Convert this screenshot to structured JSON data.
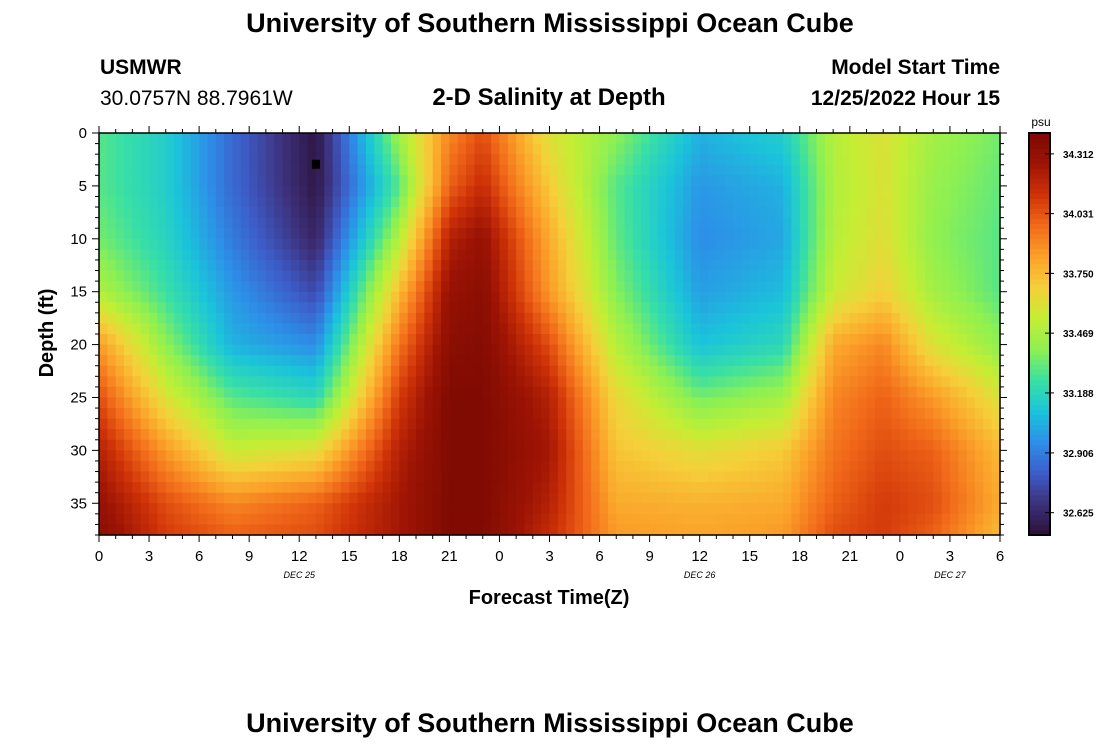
{
  "page": {
    "title_top": "University of Southern Mississippi Ocean Cube",
    "title_bottom": "University of Southern Mississippi Ocean Cube",
    "station_name": "USMWR",
    "station_coords": "30.0757N  88.7961W",
    "model_start_label": "Model Start Time",
    "model_start_value": "12/25/2022 Hour 15"
  },
  "colors": {
    "colormap": [
      "#2b1036",
      "#3d2f78",
      "#3d5cc8",
      "#2d8fe8",
      "#1bc4da",
      "#38dfa6",
      "#8df052",
      "#c4ee34",
      "#f5d03a",
      "#fba22a",
      "#f26b1a",
      "#cf3308",
      "#9e1404",
      "#7e0a02"
    ],
    "marker": "#000000"
  },
  "chart_data": {
    "type": "heatmap",
    "title": "2-D Salinity at Depth",
    "xlabel": "Forecast Time(Z)",
    "ylabel": "Depth (ft)",
    "x_range_hours": [
      0,
      54
    ],
    "y_range_ft": [
      0,
      38
    ],
    "x_ticks": [
      {
        "hour": 0,
        "label": "0"
      },
      {
        "hour": 3,
        "label": "3"
      },
      {
        "hour": 6,
        "label": "6"
      },
      {
        "hour": 9,
        "label": "9"
      },
      {
        "hour": 12,
        "label": "12"
      },
      {
        "hour": 15,
        "label": "15"
      },
      {
        "hour": 18,
        "label": "18"
      },
      {
        "hour": 21,
        "label": "21"
      },
      {
        "hour": 24,
        "label": "0"
      },
      {
        "hour": 27,
        "label": "3"
      },
      {
        "hour": 30,
        "label": "6"
      },
      {
        "hour": 33,
        "label": "9"
      },
      {
        "hour": 36,
        "label": "12"
      },
      {
        "hour": 39,
        "label": "15"
      },
      {
        "hour": 42,
        "label": "18"
      },
      {
        "hour": 45,
        "label": "21"
      },
      {
        "hour": 48,
        "label": "0"
      },
      {
        "hour": 51,
        "label": "3"
      },
      {
        "hour": 54,
        "label": "6"
      }
    ],
    "date_labels": [
      {
        "hour": 12,
        "label": "DEC 25"
      },
      {
        "hour": 36,
        "label": "DEC 26"
      },
      {
        "hour": 51,
        "label": "DEC 27"
      }
    ],
    "y_ticks": [
      {
        "ft": 0,
        "label": "0"
      },
      {
        "ft": 5,
        "label": "5"
      },
      {
        "ft": 10,
        "label": "10"
      },
      {
        "ft": 15,
        "label": "15"
      },
      {
        "ft": 20,
        "label": "20"
      },
      {
        "ft": 25,
        "label": "25"
      },
      {
        "ft": 30,
        "label": "30"
      },
      {
        "ft": 35,
        "label": "35"
      }
    ],
    "colorbar": {
      "unit": "psu",
      "range": [
        32.52,
        34.41
      ],
      "ticks": [
        {
          "value": 32.625,
          "label": "32.625"
        },
        {
          "value": 32.906,
          "label": "32.906"
        },
        {
          "value": 33.188,
          "label": "33.188"
        },
        {
          "value": 33.469,
          "label": "33.469"
        },
        {
          "value": 33.75,
          "label": "33.750"
        },
        {
          "value": 34.031,
          "label": "34.031"
        },
        {
          "value": 34.312,
          "label": "34.312"
        }
      ]
    },
    "grid": {
      "times_hours": [
        0,
        4,
        8,
        13,
        18,
        21,
        23,
        27,
        31,
        36,
        41,
        44,
        47,
        50,
        54
      ],
      "depths_ft": [
        0,
        5,
        10,
        15,
        20,
        25,
        30,
        35,
        38
      ],
      "salinity_psu": [
        [
          33.3,
          33.15,
          32.85,
          32.55,
          33.45,
          33.9,
          34.05,
          33.6,
          33.4,
          33.05,
          33.15,
          33.5,
          33.6,
          33.45,
          33.35
        ],
        [
          33.3,
          33.15,
          32.85,
          32.56,
          33.3,
          34.0,
          34.15,
          33.7,
          33.3,
          32.98,
          33.05,
          33.48,
          33.6,
          33.42,
          33.32
        ],
        [
          33.35,
          33.18,
          32.9,
          32.62,
          33.5,
          34.2,
          34.3,
          33.8,
          33.32,
          32.95,
          33.02,
          33.5,
          33.62,
          33.4,
          33.3
        ],
        [
          33.48,
          33.25,
          32.98,
          32.75,
          33.75,
          34.3,
          34.35,
          33.85,
          33.38,
          33.0,
          33.08,
          33.55,
          33.68,
          33.45,
          33.3
        ],
        [
          33.85,
          33.4,
          33.05,
          32.95,
          33.95,
          34.35,
          34.38,
          34.05,
          33.5,
          33.1,
          33.2,
          33.8,
          33.9,
          33.6,
          33.4
        ],
        [
          34.05,
          33.6,
          33.3,
          33.2,
          34.1,
          34.4,
          34.4,
          34.2,
          33.65,
          33.35,
          33.45,
          33.9,
          34.0,
          33.85,
          33.6
        ],
        [
          34.2,
          33.85,
          33.55,
          33.62,
          34.2,
          34.4,
          34.4,
          34.25,
          33.72,
          33.62,
          33.7,
          33.95,
          34.05,
          34.0,
          33.75
        ],
        [
          34.3,
          34.05,
          33.9,
          34.0,
          34.25,
          34.4,
          34.4,
          34.2,
          33.8,
          33.78,
          33.8,
          34.0,
          34.1,
          34.05,
          33.8
        ],
        [
          34.35,
          34.1,
          34.0,
          34.05,
          34.25,
          34.4,
          34.4,
          34.15,
          33.85,
          33.82,
          33.85,
          34.05,
          34.1,
          34.0,
          33.75
        ]
      ]
    },
    "marker": {
      "hour": 13,
      "depth_ft": 3
    }
  }
}
